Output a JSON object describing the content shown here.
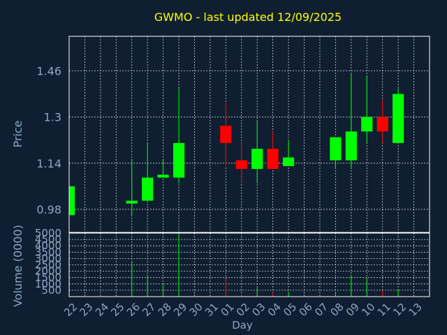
{
  "chart_data": {
    "type": "candlestick",
    "title": "GWMO - last updated 12/09/2025",
    "ylabel_price": "Price",
    "ylabel_volume": "Volume (0000)",
    "xlabel": "Day",
    "price_ticks": [
      "0.98",
      "1.14",
      "1.3",
      "1.46"
    ],
    "price_tick_values": [
      0.98,
      1.14,
      1.3,
      1.46
    ],
    "price_range": [
      0.9,
      1.58
    ],
    "volume_ticks": [
      "500",
      "1000",
      "1500",
      "2000",
      "2500",
      "3000",
      "3500",
      "4000",
      "4500",
      "5000"
    ],
    "volume_tick_values": [
      500,
      1000,
      1500,
      2000,
      2500,
      3000,
      3500,
      4000,
      4500,
      5000
    ],
    "volume_range": [
      0,
      5000
    ],
    "day_labels": [
      "22",
      "23",
      "24",
      "25",
      "26",
      "27",
      "28",
      "29",
      "30",
      "31",
      "01",
      "02",
      "03",
      "04",
      "05",
      "06",
      "07",
      "08",
      "09",
      "10",
      "11",
      "12",
      "13"
    ],
    "up_color": "#00ff00",
    "down_color": "#ff0000",
    "grid": true,
    "candles": [
      {
        "day": "22",
        "open": 0.96,
        "close": 1.06,
        "high": 1.06,
        "low": 0.96,
        "volume": 0
      },
      {
        "day": "26",
        "open": 1.0,
        "close": 1.01,
        "high": 1.15,
        "low": 0.96,
        "volume": 2800
      },
      {
        "day": "27",
        "open": 1.01,
        "close": 1.09,
        "high": 1.21,
        "low": 1.01,
        "volume": 1700
      },
      {
        "day": "28",
        "open": 1.09,
        "close": 1.1,
        "high": 1.15,
        "low": 1.09,
        "volume": 900
      },
      {
        "day": "29",
        "open": 1.09,
        "close": 1.21,
        "high": 1.4,
        "low": 1.07,
        "volume": 5000
      },
      {
        "day": "01",
        "open": 1.27,
        "close": 1.21,
        "high": 1.35,
        "low": 1.13,
        "volume": 1400
      },
      {
        "day": "02",
        "open": 1.15,
        "close": 1.12,
        "high": 1.21,
        "low": 1.07,
        "volume": 150
      },
      {
        "day": "03",
        "open": 1.12,
        "close": 1.19,
        "high": 1.29,
        "low": 1.07,
        "volume": 700
      },
      {
        "day": "04",
        "open": 1.19,
        "close": 1.12,
        "high": 1.25,
        "low": 1.12,
        "volume": 350
      },
      {
        "day": "05",
        "open": 1.13,
        "close": 1.16,
        "high": 1.22,
        "low": 1.13,
        "volume": 400
      },
      {
        "day": "08",
        "open": 1.15,
        "close": 1.23,
        "high": 1.23,
        "low": 1.12,
        "volume": 400
      },
      {
        "day": "09",
        "open": 1.15,
        "close": 1.25,
        "high": 1.45,
        "low": 1.12,
        "volume": 1700
      },
      {
        "day": "10",
        "open": 1.25,
        "close": 1.3,
        "high": 1.44,
        "low": 1.21,
        "volume": 1400
      },
      {
        "day": "11",
        "open": 1.3,
        "close": 1.25,
        "high": 1.36,
        "low": 1.21,
        "volume": 450
      },
      {
        "day": "12",
        "open": 1.21,
        "close": 1.38,
        "high": 1.4,
        "low": 1.21,
        "volume": 550
      }
    ]
  }
}
